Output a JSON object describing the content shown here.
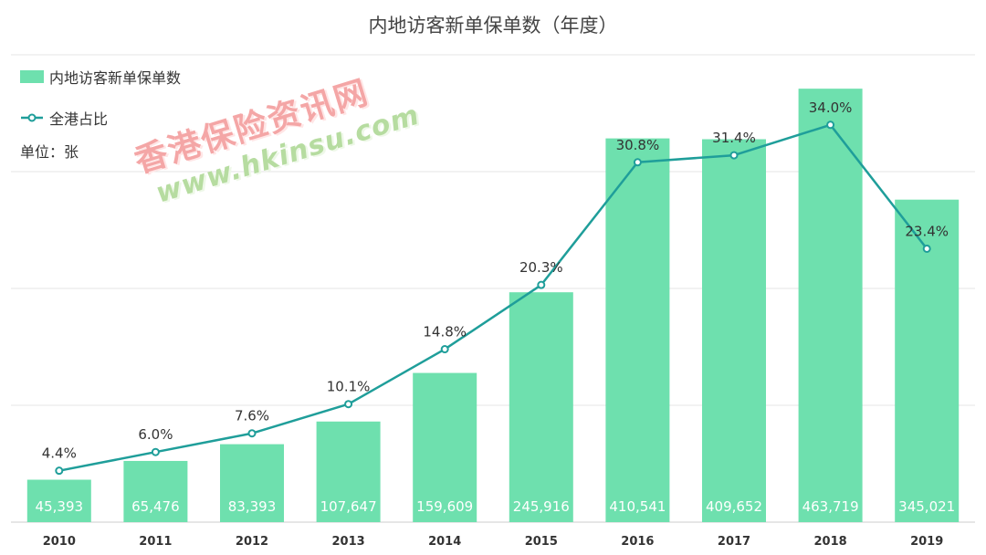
{
  "chart_data": {
    "type": "bar",
    "title": "内地访客新单保单数（年度）",
    "unit_label": "单位：张",
    "categories": [
      "2010",
      "2011",
      "2012",
      "2013",
      "2014",
      "2015",
      "2016",
      "2017",
      "2018",
      "2019"
    ],
    "series": [
      {
        "name": "内地访客新单保单数",
        "type": "bar",
        "values": [
          45393,
          65476,
          83393,
          107647,
          159609,
          245916,
          410541,
          409652,
          463719,
          345021
        ],
        "labels": [
          "45,393",
          "65,476",
          "83,393",
          "107,647",
          "159,609",
          "245,916",
          "410,541",
          "409,652",
          "463,719",
          "345,021"
        ],
        "color": "#6ee0ae"
      },
      {
        "name": "全港占比",
        "type": "line",
        "values": [
          4.4,
          6.0,
          7.6,
          10.1,
          14.8,
          20.3,
          30.8,
          31.4,
          34.0,
          23.4
        ],
        "labels": [
          "4.4%",
          "6.0%",
          "7.6%",
          "10.1%",
          "14.8%",
          "20.3%",
          "30.8%",
          "31.4%",
          "34.0%",
          "23.4%"
        ],
        "color": "#1f9e9a"
      }
    ],
    "ylim_bar": [
      0,
      500000
    ],
    "ylim_line": [
      0,
      40
    ],
    "grid": true,
    "legend_position": "top-left"
  },
  "watermark": {
    "line1": "香港保险资讯网",
    "line2": "www.hkinsu.com"
  }
}
